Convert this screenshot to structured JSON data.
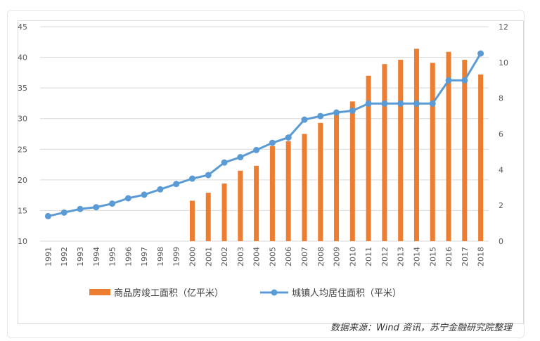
{
  "source_note": "数据来源：Wind 资讯，苏宁金融研究院整理",
  "chart_data": {
    "type": "bar",
    "categories": [
      "1991",
      "1992",
      "1993",
      "1994",
      "1995",
      "1996",
      "1997",
      "1998",
      "1999",
      "2000",
      "2001",
      "2002",
      "2003",
      "2004",
      "2005",
      "2006",
      "2007",
      "2008",
      "2009",
      "2010",
      "2011",
      "2012",
      "2013",
      "2014",
      "2015",
      "2016",
      "2017",
      "2018"
    ],
    "left_axis": {
      "min": 10,
      "max": 45,
      "ticks": [
        10,
        15,
        20,
        25,
        30,
        35,
        40,
        45
      ]
    },
    "right_axis": {
      "min": 0,
      "max": 12,
      "ticks": [
        0,
        2,
        4,
        6,
        8,
        10,
        12
      ]
    },
    "series": [
      {
        "name": "商品房竣工面积（亿平米）",
        "type": "bar",
        "axis": "left",
        "color": "#ed7d31",
        "values": [
          null,
          null,
          null,
          null,
          null,
          null,
          null,
          null,
          null,
          16.6,
          17.9,
          19.4,
          21.5,
          22.3,
          25.5,
          26.3,
          27.5,
          29.3,
          31.0,
          32.8,
          37.0,
          38.9,
          39.6,
          41.4,
          39.1,
          40.9,
          39.6,
          37.2
        ]
      },
      {
        "name": "城镇人均居住面积（平米）",
        "type": "line",
        "axis": "right",
        "color": "#5b9bd5",
        "values": [
          1.4,
          1.6,
          1.8,
          1.9,
          2.1,
          2.4,
          2.6,
          2.9,
          3.2,
          3.5,
          3.7,
          4.4,
          4.7,
          5.1,
          5.5,
          5.8,
          6.8,
          7.0,
          7.2,
          7.3,
          7.7,
          7.7,
          7.7,
          7.7,
          7.7,
          9.0,
          9.0,
          10.5
        ]
      }
    ],
    "legend_position": "bottom",
    "grid": true
  }
}
